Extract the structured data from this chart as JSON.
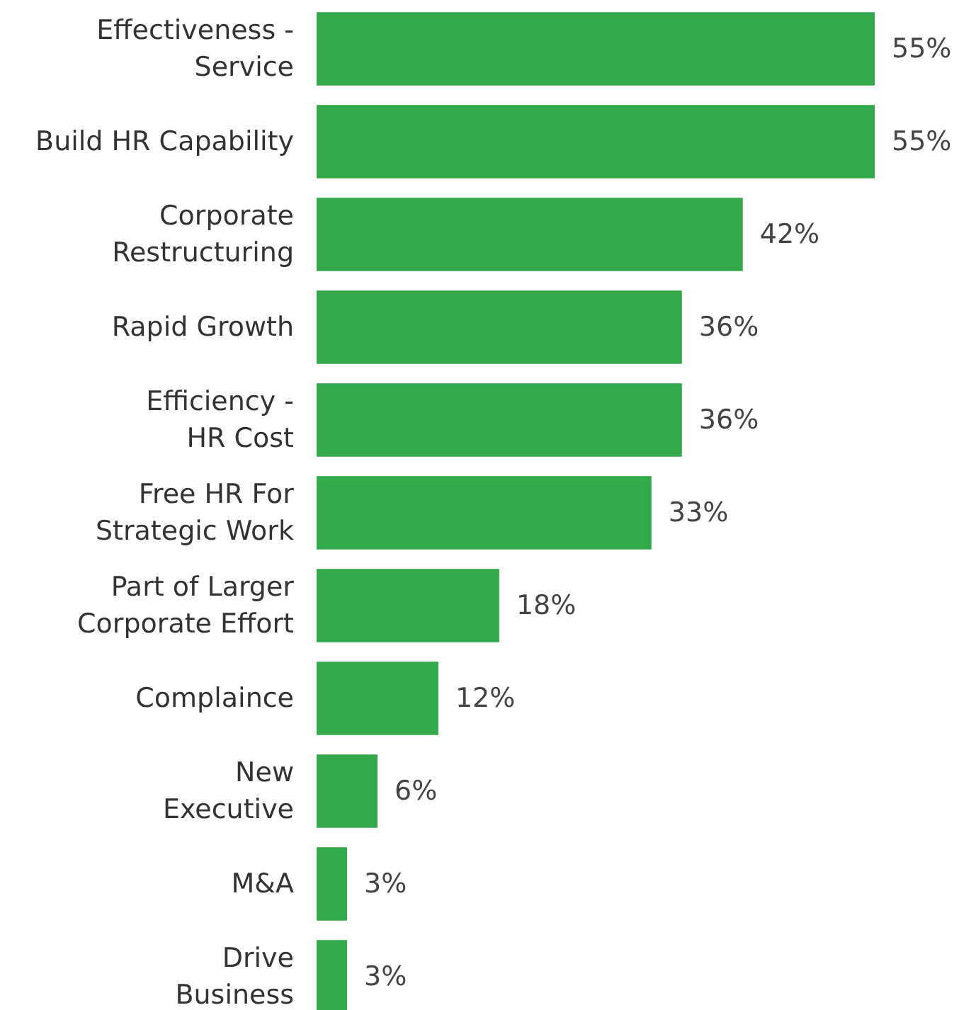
{
  "chart_data": {
    "type": "bar",
    "orientation": "horizontal",
    "color": "#33a94b",
    "categories": [
      "Effectiveness -\nService",
      "Build HR Capability",
      "Corporate\nRestructuring",
      "Rapid Growth",
      "Efficiency -\nHR Cost",
      "Free HR For\nStrategic Work",
      "Part of Larger\nCorporate Effort",
      "Complaince",
      "New\nExecutive",
      "M&A",
      "Drive\nBusiness"
    ],
    "values": [
      55,
      55,
      42,
      36,
      36,
      33,
      18,
      12,
      6,
      3,
      3
    ],
    "value_labels": [
      "55%",
      "55%",
      "42%",
      "36%",
      "36%",
      "33%",
      "18%",
      "12%",
      "6%",
      "3%",
      "3%"
    ]
  }
}
